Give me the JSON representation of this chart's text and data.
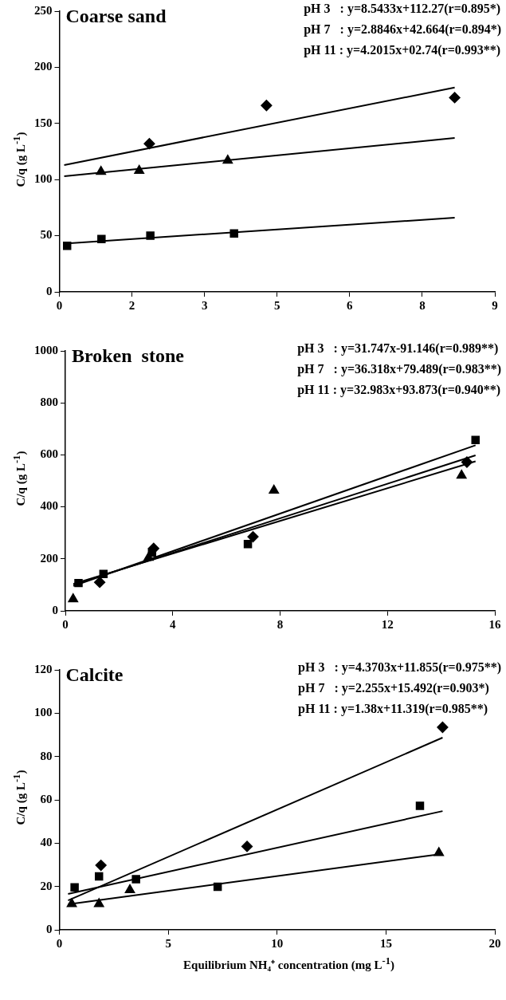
{
  "chart_data": [
    {
      "type": "scatter",
      "title": "Coarse sand",
      "ylabel": "C/q (g L$^{-1}$)",
      "annotations": [
        "pH 3   : y=8.5433x+112.27(r=0.895*)",
        "pH 7   : y=2.8846x+42.664(r=0.894*)",
        "pH 11 : y=4.2015x+02.74(r=0.993**)"
      ],
      "xlim": [
        0,
        9
      ],
      "xticks": [
        0,
        {
          "value": 1.5,
          "label": "2"
        },
        3,
        {
          "value": 4.5,
          "label": "5"
        },
        6,
        {
          "value": 7.5,
          "label": "8"
        },
        9
      ],
      "ylim": [
        0,
        250
      ],
      "yticks": [
        0,
        50,
        100,
        150,
        200,
        250
      ],
      "grid": false,
      "series": [
        {
          "color": "#000000",
          "marker": "diamond",
          "x": [
            1.86,
            4.28,
            8.17
          ],
          "values": [
            132,
            166,
            173
          ]
        },
        {
          "color": "#000000",
          "marker": "square",
          "x": [
            0.16,
            0.87,
            1.88,
            3.61
          ],
          "values": [
            41,
            47,
            50,
            52
          ]
        },
        {
          "color": "#000000",
          "marker": "triangle",
          "x": [
            0.86,
            1.65,
            3.48
          ],
          "values": [
            107,
            108,
            117
          ]
        },
        {
          "type": "line",
          "color": "#000000",
          "marker": "none",
          "x": [
            0.1,
            8.17
          ],
          "values": [
            113,
            182
          ]
        },
        {
          "type": "line",
          "color": "#000000",
          "marker": "none",
          "x": [
            0.1,
            8.17
          ],
          "values": [
            43,
            66
          ]
        },
        {
          "type": "line",
          "color": "#000000",
          "marker": "none",
          "x": [
            0.1,
            8.17
          ],
          "values": [
            103,
            137
          ]
        }
      ]
    },
    {
      "type": "scatter",
      "title": "Broken  stone",
      "ylabel": "C/q (g L$^{-1}$)",
      "annotations": [
        "pH 3   : y=31.747x-91.146(r=0.989**)",
        "pH 7   : y=36.318x+79.489(r=0.983**)",
        "pH 11 : y=32.983x+93.873(r=0.940**)"
      ],
      "xlim": [
        0,
        16
      ],
      "xticks": [
        0,
        4,
        8,
        12,
        16
      ],
      "ylim": [
        0,
        1000
      ],
      "yticks": [
        0,
        200,
        400,
        600,
        800,
        1000
      ],
      "grid": false,
      "series": [
        {
          "color": "#000000",
          "marker": "diamond",
          "x": [
            1.28,
            3.29,
            6.99,
            14.96
          ],
          "values": [
            110,
            240,
            285,
            572
          ]
        },
        {
          "color": "#000000",
          "marker": "square",
          "x": [
            0.49,
            1.42,
            3.23,
            6.8,
            15.28
          ],
          "values": [
            107,
            142,
            225,
            257,
            657
          ]
        },
        {
          "color": "#000000",
          "marker": "triangle",
          "x": [
            0.29,
            3.1,
            7.77,
            14.76
          ],
          "values": [
            45,
            205,
            463,
            521
          ]
        },
        {
          "type": "line",
          "color": "#000000",
          "marker": "none",
          "x": [
            0.3,
            15.28
          ],
          "values": [
            100,
            598
          ]
        },
        {
          "type": "line",
          "color": "#000000",
          "marker": "none",
          "x": [
            0.3,
            15.28
          ],
          "values": [
            96,
            637
          ]
        },
        {
          "type": "line",
          "color": "#000000",
          "marker": "none",
          "x": [
            0.3,
            15.28
          ],
          "values": [
            104,
            575
          ]
        }
      ]
    },
    {
      "type": "scatter",
      "title": "Calcite",
      "ylabel": "C/q (g L$^{-1}$)",
      "xlabel": "Equilibrium NH₄⁺ concentration (mg L$^{-1}$)",
      "annotations": [
        "pH 3   : y=4.3703x+11.855(r=0.975**)",
        "pH 7   : y=2.255x+15.492(r=0.903*)",
        "pH 11 : y=1.38x+11.319(r=0.985**)"
      ],
      "xlim": [
        0,
        20
      ],
      "xticks": [
        0,
        5,
        10,
        15,
        20
      ],
      "ylim": [
        0,
        120
      ],
      "yticks": [
        0,
        20,
        40,
        60,
        80,
        100,
        120
      ],
      "grid": false,
      "series": [
        {
          "color": "#000000",
          "marker": "diamond",
          "x": [
            1.91,
            8.62,
            17.6
          ],
          "values": [
            29.8,
            38.5,
            93.5
          ]
        },
        {
          "color": "#000000",
          "marker": "square",
          "x": [
            0.7,
            1.82,
            3.52,
            7.27,
            16.56
          ],
          "values": [
            19.6,
            24.7,
            23.4,
            19.9,
            57.2
          ]
        },
        {
          "color": "#000000",
          "marker": "triangle",
          "x": [
            0.57,
            1.82,
            3.24,
            17.43
          ],
          "values": [
            12.0,
            12.0,
            18.4,
            35.5
          ]
        },
        {
          "type": "line",
          "color": "#000000",
          "marker": "none",
          "x": [
            0.4,
            17.6
          ],
          "values": [
            13.6,
            88.7
          ]
        },
        {
          "type": "line",
          "color": "#000000",
          "marker": "none",
          "x": [
            0.4,
            17.6
          ],
          "values": [
            16.6,
            54.8
          ]
        },
        {
          "type": "line",
          "color": "#000000",
          "marker": "none",
          "x": [
            0.4,
            17.6
          ],
          "values": [
            11.8,
            35.1
          ]
        }
      ]
    }
  ]
}
